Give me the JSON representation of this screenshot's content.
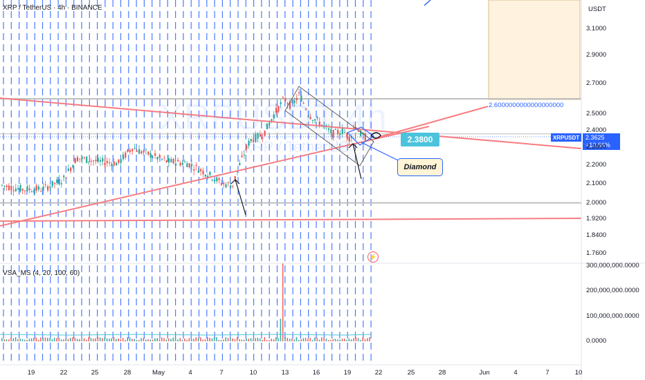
{
  "header": {
    "symbol_title": "XRP / TetherUS · 4h · BINANCE",
    "indicator_label": "VSA_MS (4, 20, 100, 60)",
    "watermark": "XRPUSDT 4h",
    "watermark_sub": "XRP / TetherUS"
  },
  "annotations": {
    "price_label": "2.3800",
    "diamond_label": "Diamond",
    "level_text": "2.6000000000000000000"
  },
  "price_scale": {
    "unit": "USDT",
    "symbol_tag": "XRPUSDT",
    "last_price": "2.3625",
    "change_pct": "+10.66%"
  },
  "colors": {
    "accent": "#2962ff",
    "trendline": "#f77c80",
    "up": "#26a69a",
    "down": "#ef5350",
    "zone_fill": "#fff3e0",
    "zone_border": "#d9b98c"
  },
  "chart_data": {
    "type": "candlestick",
    "price_axis": {
      "ticks": [
        "3.1000",
        "2.9000",
        "2.7000",
        "2.5000",
        "2.4000",
        "2.3000",
        "2.2000",
        "2.1000",
        "2.0000",
        "1.9200",
        "1.8400",
        "1.7600"
      ],
      "values": [
        3.1,
        2.9,
        2.7,
        2.5,
        2.4,
        2.3,
        2.2,
        2.1,
        2.0,
        1.92,
        1.84,
        1.76
      ],
      "log_scale": true
    },
    "volume_axis": {
      "ticks": [
        "300,000,000.0000",
        "200,000,000.0000",
        "100,000,000.0000",
        "0.0000"
      ],
      "values": [
        300000000,
        200000000,
        100000000,
        0
      ]
    },
    "x_ticks": [
      "19",
      "22",
      "25",
      "28",
      "May",
      "4",
      "7",
      "10",
      "13",
      "16",
      "19",
      "22",
      "25",
      "28",
      "Jun",
      "4",
      "7",
      "10"
    ],
    "grid": true,
    "horizontal_levels": [
      2.6,
      2.38,
      2.0,
      1.92
    ]
  }
}
